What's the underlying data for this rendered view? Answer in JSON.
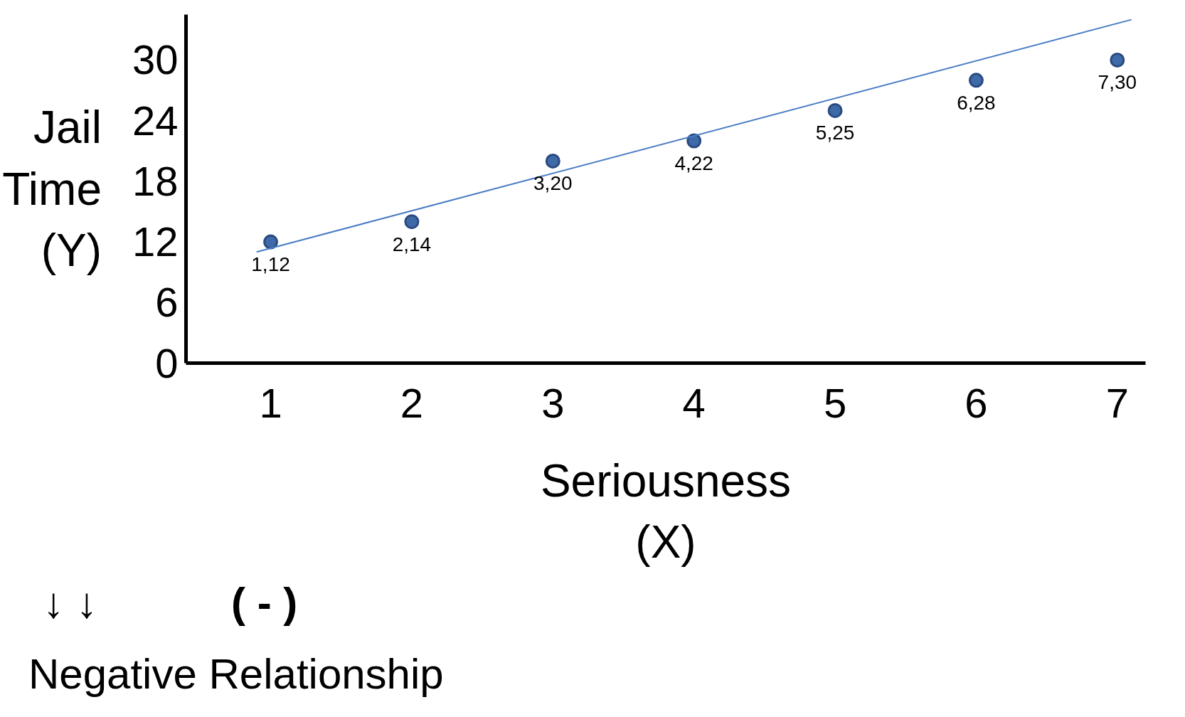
{
  "chart_data": {
    "type": "scatter",
    "xlabel": "Seriousness\n(X)",
    "ylabel": "Jail\nTime\n(Y)",
    "x": [
      1,
      2,
      3,
      4,
      5,
      6,
      7
    ],
    "series": [
      {
        "color": "#3f6aa8",
        "values": [
          12,
          14,
          20,
          22,
          25,
          28,
          30
        ],
        "marker": "circle"
      },
      {
        "type": "line",
        "color": "#4a7cc4",
        "x": [
          0.9,
          7.1
        ],
        "values": [
          11,
          34
        ],
        "marker": "none"
      }
    ],
    "xlim": [
      0.4,
      7.2
    ],
    "ylim": [
      0,
      34.5
    ],
    "xticks": [
      1,
      2,
      3,
      4,
      5,
      6,
      7
    ],
    "yticks": [
      0,
      6,
      12,
      18,
      24,
      30
    ],
    "grid": false,
    "annotations": [
      {
        "text": "1,12",
        "x": 1,
        "y": 12
      },
      {
        "text": "2,14",
        "x": 2,
        "y": 14
      },
      {
        "text": "3,20",
        "x": 3,
        "y": 20
      },
      {
        "text": "4,22",
        "x": 4,
        "y": 22
      },
      {
        "text": "5,25",
        "x": 5,
        "y": 25
      },
      {
        "text": "6,28",
        "x": 6,
        "y": 28
      },
      {
        "text": "7,30",
        "x": 7,
        "y": 30
      },
      "↓ ↓",
      "( - )",
      "Negative Relationship"
    ]
  }
}
